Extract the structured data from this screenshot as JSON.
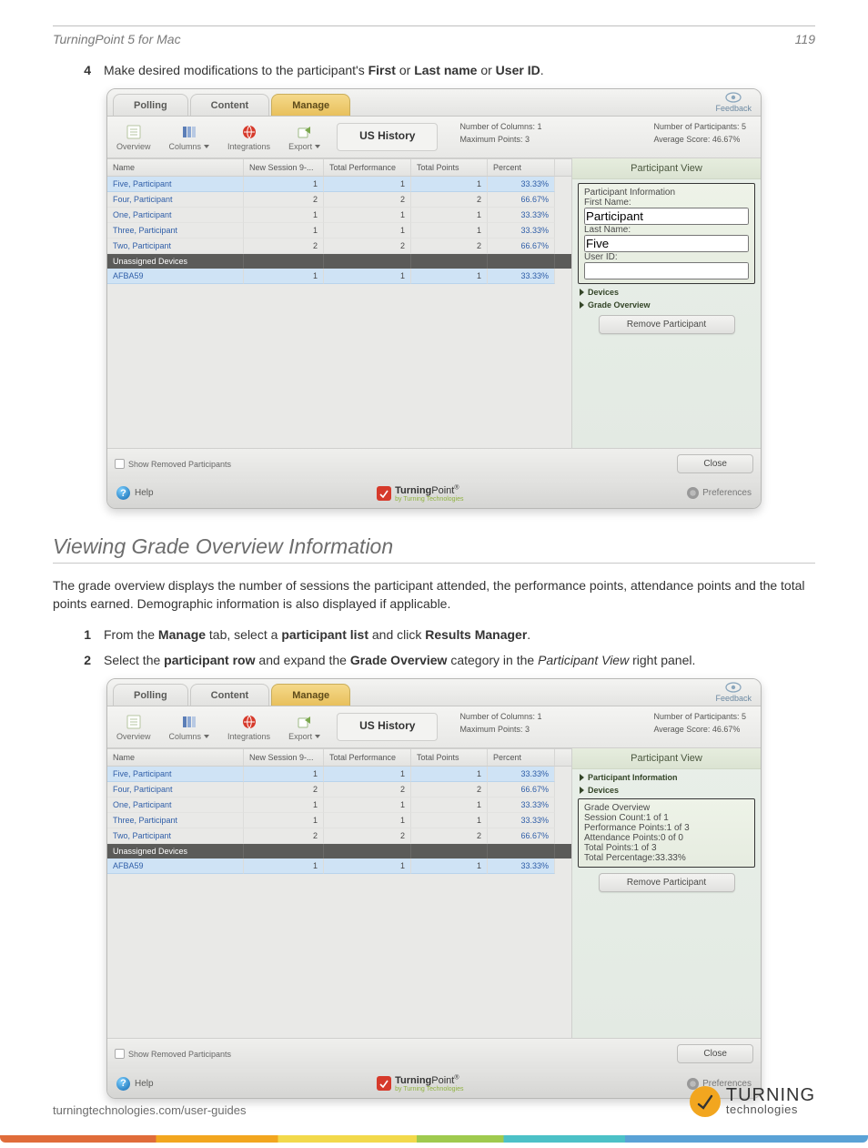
{
  "doc": {
    "title_left": "TurningPoint 5 for Mac",
    "page_no": "119",
    "step4_prefix": "Make desired modifications to the participant's ",
    "step4_b1": "First",
    "step4_mid1": " or ",
    "step4_b2": "Last name",
    "step4_mid2": " or ",
    "step4_b3": "User ID",
    "step4_end": ".",
    "section_title": "Viewing Grade Overview Information",
    "section_body": "The grade overview displays the number of sessions the participant attended, the performance points, attendance points and the total points earned. Demographic information is also displayed if applicable.",
    "step1_a": "From the ",
    "step1_b1": "Manage",
    "step1_b": " tab, select a ",
    "step1_b2": "participant list",
    "step1_c": " and click ",
    "step1_b3": "Results Manager",
    "step1_d": ".",
    "step2_a": "Select the ",
    "step2_b1": "participant row",
    "step2_b": " and expand the ",
    "step2_b2": "Grade Overview",
    "step2_c": " category in the ",
    "step2_i": "Participant View",
    "step2_d": " right panel.",
    "footer_url": "turningtechnologies.com/user-guides",
    "brand1": "TURNING",
    "brand2": "technologies"
  },
  "app": {
    "tabs": {
      "polling": "Polling",
      "content": "Content",
      "manage": "Manage",
      "feedback": "Feedback"
    },
    "tools": {
      "overview": "Overview",
      "columns": "Columns",
      "integrations": "Integrations",
      "export": "Export"
    },
    "session_title": "US History",
    "stats": {
      "cols": "Number of Columns: 1",
      "max": "Maximum Points: 3",
      "parts": "Number of Participants: 5",
      "avg": "Average Score: 46.67%"
    },
    "headers": {
      "name": "Name",
      "sess": "New Session 9-...",
      "perf": "Total Performance",
      "tot": "Total Points",
      "pct": "Percent"
    },
    "rows": [
      {
        "name": "Five, Participant",
        "s": "1",
        "p": "1",
        "t": "1",
        "pct": "33.33%",
        "sel": true
      },
      {
        "name": "Four, Participant",
        "s": "2",
        "p": "2",
        "t": "2",
        "pct": "66.67%",
        "sel": false
      },
      {
        "name": "One, Participant",
        "s": "1",
        "p": "1",
        "t": "1",
        "pct": "33.33%",
        "sel": false
      },
      {
        "name": "Three, Participant",
        "s": "1",
        "p": "1",
        "t": "1",
        "pct": "33.33%",
        "sel": false
      },
      {
        "name": "Two, Participant",
        "s": "2",
        "p": "2",
        "t": "2",
        "pct": "66.67%",
        "sel": false
      }
    ],
    "group_label": "Unassigned Devices",
    "device_row": {
      "name": "AFBA59",
      "s": "1",
      "p": "1",
      "t": "1",
      "pct": "33.33%"
    },
    "panel": {
      "title": "Participant View",
      "info_hdr": "Participant Information",
      "first_label": "First Name:",
      "first_val": "Participant",
      "last_label": "Last Name:",
      "last_val": "Five",
      "uid_label": "User ID:",
      "uid_val": "",
      "devices": "Devices",
      "grade_hdr": "Grade Overview",
      "gv_session": "Session Count:",
      "gv_session_v": "1 of 1",
      "gv_perf": "Performance Points:",
      "gv_perf_v": "1 of 3",
      "gv_att": "Attendance Points:",
      "gv_att_v": "0 of 0",
      "gv_tot": "Total Points:",
      "gv_tot_v": "1 of 3",
      "gv_pct": "Total Percentage:",
      "gv_pct_v": "33.33%",
      "remove": "Remove Participant"
    },
    "show_removed": "Show Removed Participants",
    "close": "Close",
    "help": "Help",
    "tp_bold": "Turning",
    "tp_rest": "Point",
    "tp_sub": "by Turning Technologies",
    "prefs": "Preferences"
  },
  "nums": {
    "n1": "1",
    "n2": "2",
    "n4": "4"
  }
}
